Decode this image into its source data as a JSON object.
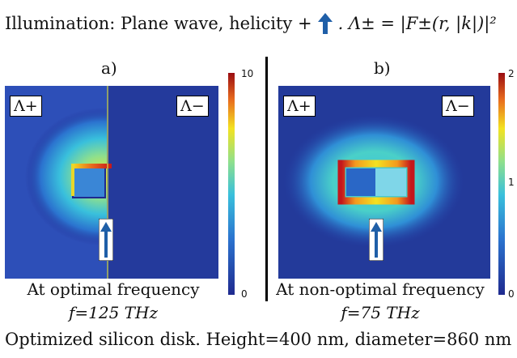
{
  "header": {
    "text_before": "Illumination: Plane wave, helicity +",
    "formula": ". Λ± = |F±(r, |k|)|²"
  },
  "panels": [
    {
      "label": "a)",
      "left_tag": "Λ+",
      "right_tag": "Λ−",
      "caption_line1": "At optimal frequency",
      "caption_line2": "f=125 THz",
      "colorbar_max": "10",
      "colorbar_min": "0"
    },
    {
      "label": "b)",
      "left_tag": "Λ+",
      "right_tag": "Λ−",
      "caption_line1": "At non-optimal frequency",
      "caption_line2": "f=75 THz",
      "colorbar_max": "2",
      "colorbar_mid": "1",
      "colorbar_min": "0"
    }
  ],
  "footer": {
    "text": "Optimized silicon disk. Height=400 nm, diameter=860 nm"
  },
  "colors": {
    "deep_blue": "#1f2a8f",
    "field_blue": "#2a57c4",
    "arrow_blue": "#1f5fa8",
    "hot_red": "#c4161c",
    "yellow": "#f3e221"
  }
}
